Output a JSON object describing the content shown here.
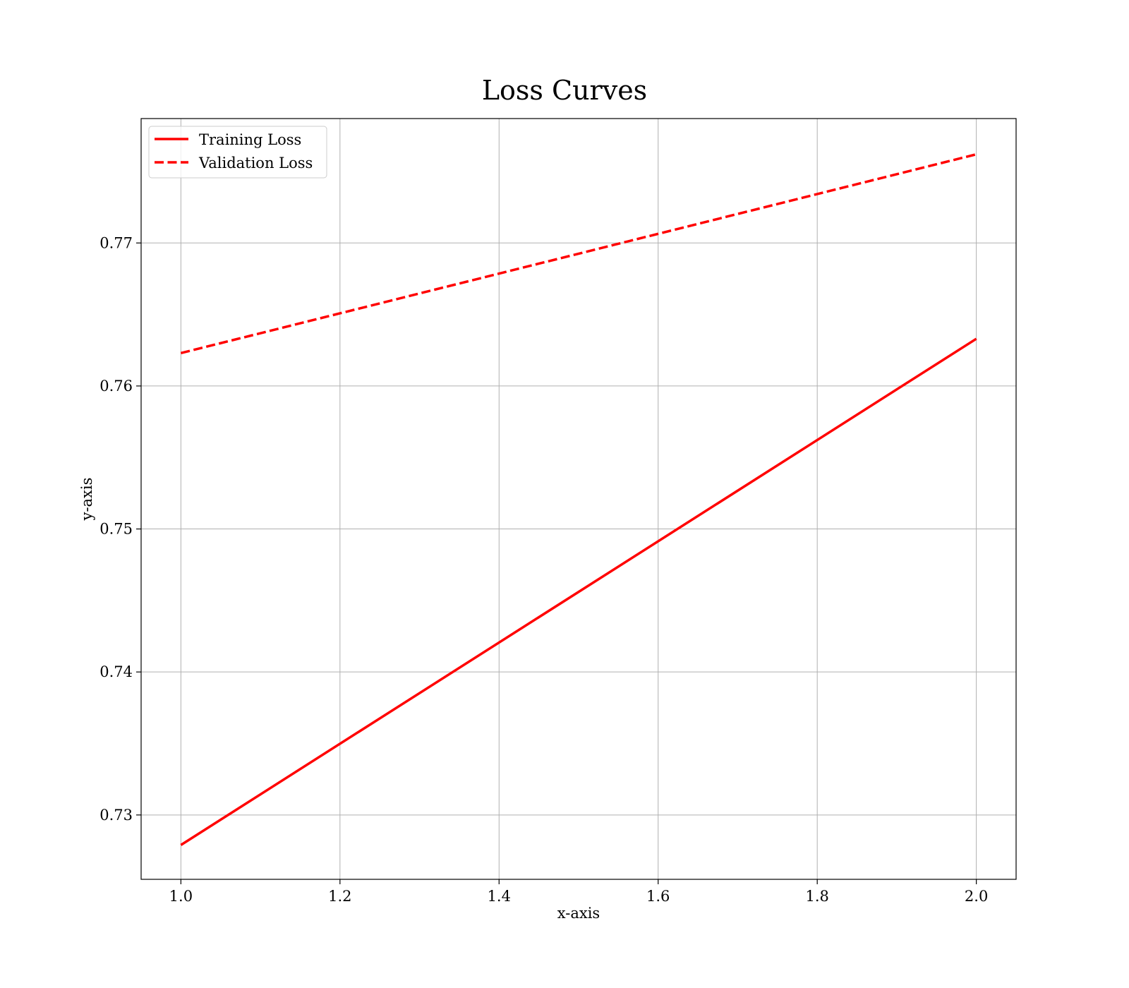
{
  "chart_data": {
    "type": "line",
    "title": "Loss Curves",
    "xlabel": "x-axis",
    "ylabel": "y-axis",
    "xlim": [
      0.95,
      2.05
    ],
    "ylim": [
      0.7255,
      0.7787
    ],
    "x_ticks": [
      1.0,
      1.2,
      1.4,
      1.6,
      1.8,
      2.0
    ],
    "x_tick_labels": [
      "1.0",
      "1.2",
      "1.4",
      "1.6",
      "1.8",
      "2.0"
    ],
    "y_ticks": [
      0.73,
      0.74,
      0.75,
      0.76,
      0.77
    ],
    "y_tick_labels": [
      "0.73",
      "0.74",
      "0.75",
      "0.76",
      "0.77"
    ],
    "grid": true,
    "legend_position": "top-left",
    "series": [
      {
        "name": "Training Loss",
        "x": [
          1.0,
          2.0
        ],
        "y": [
          0.7279,
          0.7633
        ],
        "color": "#ff0000",
        "style": "solid"
      },
      {
        "name": "Validation Loss",
        "x": [
          1.0,
          2.0
        ],
        "y": [
          0.7623,
          0.7762
        ],
        "color": "#ff0000",
        "style": "dashed"
      }
    ]
  }
}
